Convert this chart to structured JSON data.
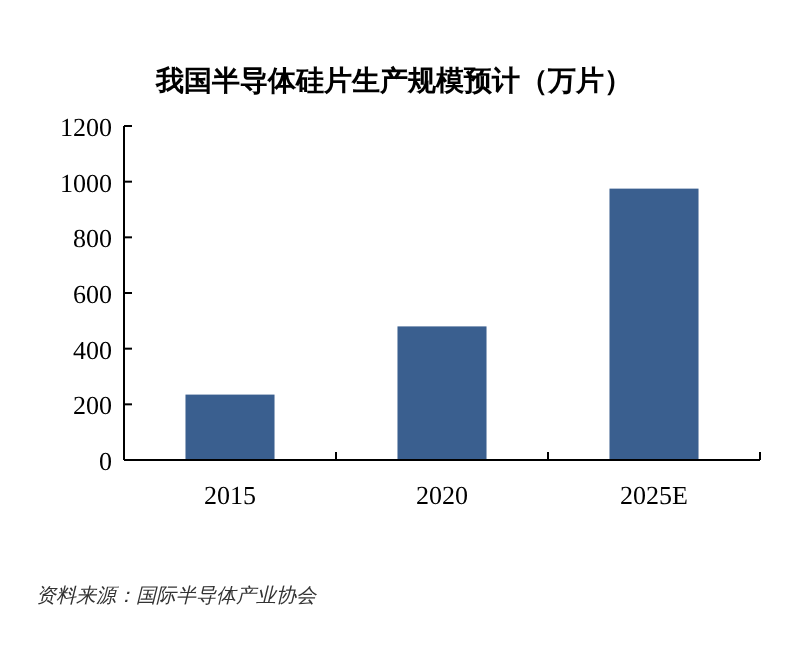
{
  "chart_data": {
    "type": "bar",
    "title": "我国半导体硅片生产规模预计（万片）",
    "categories": [
      "2015",
      "2020",
      "2025E"
    ],
    "values": [
      235,
      480,
      975
    ],
    "color": "#3a5f8f",
    "ylim": [
      0,
      1200
    ],
    "yticks": [
      0,
      200,
      400,
      600,
      800,
      1000,
      1200
    ],
    "annotations": [
      "资料来源：国际半导体产业协会"
    ]
  }
}
